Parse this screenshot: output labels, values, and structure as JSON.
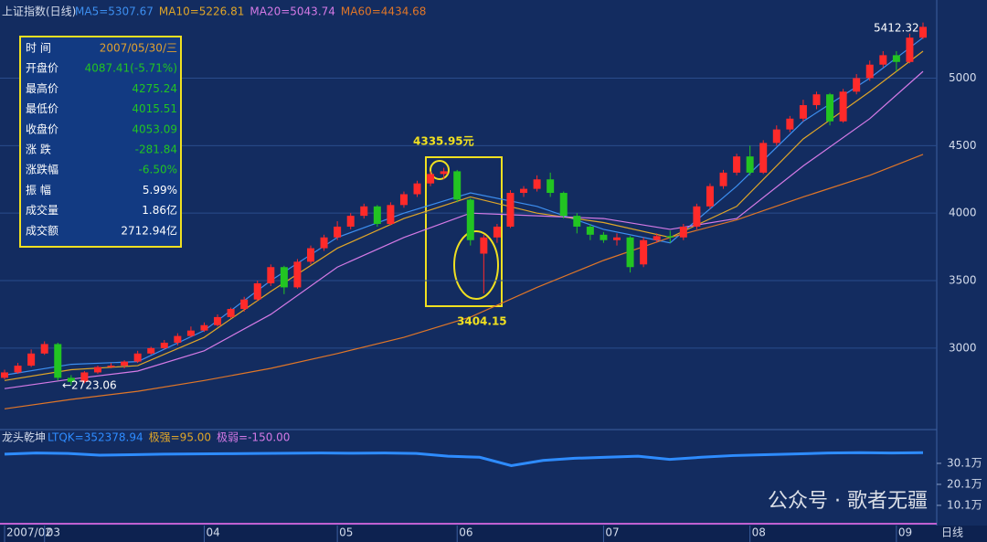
{
  "chart_data": [
    {
      "type": "candlestick",
      "title": "上证指数(日线)",
      "categories": [
        "2007/02",
        null,
        null,
        "03",
        null,
        null,
        null,
        null,
        null,
        null,
        null,
        null,
        null,
        null,
        null,
        "04",
        null,
        null,
        null,
        null,
        null,
        null,
        null,
        null,
        null,
        "05",
        null,
        null,
        null,
        null,
        null,
        null,
        null,
        null,
        "06",
        null,
        null,
        null,
        null,
        null,
        null,
        null,
        null,
        null,
        null,
        "07",
        null,
        null,
        null,
        null,
        null,
        null,
        null,
        null,
        null,
        null,
        "08",
        null,
        null,
        null,
        null,
        null,
        null,
        null,
        null,
        null,
        null,
        "09",
        null,
        null
      ],
      "open": [
        2780,
        2820,
        2870,
        2960,
        3030,
        2780,
        2750,
        2820,
        2860,
        2870,
        2900,
        2960,
        3000,
        3040,
        3090,
        3130,
        3170,
        3230,
        3290,
        3360,
        3480,
        3600,
        3450,
        3640,
        3740,
        3820,
        3900,
        3980,
        4050,
        3920,
        4060,
        4140,
        4220,
        4290,
        4310,
        4100,
        3700,
        3820,
        3900,
        4150,
        4180,
        4250,
        4150,
        3980,
        3900,
        3840,
        3800,
        3820,
        3620,
        3800,
        3830,
        3820,
        3900,
        4050,
        4200,
        4300,
        4420,
        4300,
        4520,
        4620,
        4700,
        4800,
        4880,
        4680,
        4900,
        5000,
        5100,
        5170,
        5120,
        5300
      ],
      "close": [
        2820,
        2870,
        2960,
        3030,
        2780,
        2750,
        2820,
        2860,
        2870,
        2900,
        2960,
        3000,
        3040,
        3090,
        3130,
        3170,
        3230,
        3290,
        3360,
        3480,
        3600,
        3450,
        3640,
        3740,
        3820,
        3900,
        3980,
        4050,
        3920,
        4060,
        4140,
        4220,
        4290,
        4310,
        4100,
        3800,
        3820,
        3900,
        4150,
        4180,
        4250,
        4150,
        3980,
        3900,
        3840,
        3800,
        3820,
        3600,
        3800,
        3830,
        3820,
        3900,
        4050,
        4200,
        4300,
        4420,
        4300,
        4520,
        4620,
        4700,
        4800,
        4880,
        4680,
        4900,
        5000,
        5100,
        5170,
        5120,
        5300,
        5380
      ],
      "low": [
        2770,
        2810,
        2860,
        2950,
        2760,
        2723.06,
        2740,
        2810,
        2850,
        2850,
        2890,
        2950,
        2990,
        3020,
        3080,
        3120,
        3160,
        3220,
        3270,
        3350,
        3460,
        3400,
        3440,
        3620,
        3720,
        3800,
        3880,
        3960,
        3900,
        3910,
        4040,
        4120,
        4200,
        4250,
        4080,
        3760,
        3404.15,
        3780,
        3890,
        4120,
        4160,
        4120,
        3960,
        3850,
        3800,
        3780,
        3760,
        3560,
        3600,
        3780,
        3780,
        3800,
        3880,
        4030,
        4180,
        4280,
        4280,
        4290,
        4500,
        4600,
        4680,
        4770,
        4650,
        4670,
        4880,
        4980,
        5080,
        5050,
        5110,
        5290
      ],
      "high": [
        2840,
        2890,
        2990,
        3050,
        3040,
        2800,
        2830,
        2870,
        2890,
        2910,
        2980,
        3010,
        3060,
        3110,
        3160,
        3190,
        3250,
        3300,
        3380,
        3500,
        3620,
        3610,
        3660,
        3760,
        3840,
        3940,
        4000,
        4070,
        4060,
        4080,
        4160,
        4240,
        4310,
        4335.95,
        4320,
        4110,
        3840,
        3920,
        4170,
        4200,
        4280,
        4300,
        4160,
        4000,
        3920,
        3860,
        3850,
        3830,
        3820,
        3850,
        3870,
        3920,
        4070,
        4220,
        4320,
        4440,
        4500,
        4540,
        4650,
        4720,
        4840,
        4900,
        4890,
        4920,
        5030,
        5130,
        5200,
        5200,
        5330,
        5412.32
      ],
      "ma_series": [
        {
          "name": "MA5=5307.67",
          "color": "#3d8ff0",
          "x": [
            0,
            5,
            10,
            15,
            20,
            25,
            30,
            35,
            40,
            45,
            50,
            55,
            60,
            65,
            69
          ],
          "values": [
            2800,
            2880,
            2900,
            3130,
            3500,
            3820,
            4000,
            4150,
            4050,
            3880,
            3780,
            4200,
            4680,
            5000,
            5300
          ]
        },
        {
          "name": "MA10=5226.81",
          "color": "#e0a628",
          "x": [
            0,
            5,
            10,
            15,
            20,
            25,
            30,
            35,
            40,
            45,
            50,
            55,
            60,
            65,
            69
          ],
          "values": [
            2760,
            2840,
            2870,
            3080,
            3420,
            3740,
            3960,
            4120,
            4000,
            3930,
            3820,
            4050,
            4550,
            4900,
            5200
          ]
        },
        {
          "name": "MA20=5043.74",
          "color": "#d57ae6",
          "x": [
            0,
            5,
            10,
            15,
            20,
            25,
            30,
            35,
            40,
            45,
            50,
            55,
            60,
            65,
            69
          ],
          "values": [
            2700,
            2770,
            2830,
            2980,
            3250,
            3600,
            3820,
            4000,
            3980,
            3960,
            3880,
            3960,
            4350,
            4700,
            5050
          ]
        },
        {
          "name": "MA60=4434.68",
          "color": "#e07628",
          "x": [
            0,
            5,
            10,
            15,
            20,
            25,
            30,
            35,
            40,
            45,
            50,
            55,
            60,
            65,
            69
          ],
          "values": [
            2550,
            2620,
            2680,
            2760,
            2850,
            2960,
            3080,
            3230,
            3450,
            3650,
            3820,
            3950,
            4120,
            4280,
            4434.68
          ]
        }
      ],
      "ylim": [
        2410,
        5430
      ],
      "yticks": [
        3000,
        3500,
        4000,
        4500,
        5000
      ],
      "grid": true,
      "up_color": "#ff2a2a",
      "down_color": "#22c422",
      "annotations": [
        "4335.95元",
        "3404.15",
        "5412.32",
        "←2723.06"
      ],
      "period_label": "日线"
    },
    {
      "type": "line",
      "title": "龙头乾坤",
      "series": [
        {
          "name": "LTQK=352378.94",
          "color": "#2e8cff",
          "values": [
            34.5,
            35.0,
            34.8,
            34.0,
            34.2,
            34.5,
            34.6,
            34.7,
            34.8,
            34.9,
            35.0,
            34.9,
            35.0,
            34.8,
            33.5,
            33.0,
            29.0,
            31.5,
            32.5,
            33.0,
            33.5,
            32.0,
            33.0,
            33.8,
            34.2,
            34.6,
            35.0,
            35.2,
            35.0,
            35.2
          ]
        }
      ],
      "annotations": [
        "极强=95.00",
        "极弱=-150.00"
      ],
      "ylim": [
        1.8,
        45.3
      ],
      "yticks": [
        {
          "value": 30.1,
          "label": "30.1万"
        },
        {
          "value": 20.1,
          "label": "20.1万"
        },
        {
          "value": 10.1,
          "label": "10.1万"
        }
      ]
    }
  ],
  "info_panel": {
    "rows": [
      [
        "时 间",
        "2007/05/30/三"
      ],
      [
        "开盘价",
        "4087.41(-5.71%)"
      ],
      [
        "最高价",
        "4275.24"
      ],
      [
        "最低价",
        "4015.51"
      ],
      [
        "收盘价",
        "4053.09"
      ],
      [
        "涨 跌",
        "-281.84"
      ],
      [
        "涨跌幅",
        "-6.50%"
      ],
      [
        "振 幅",
        "5.99%"
      ],
      [
        "成交量",
        "1.86亿"
      ],
      [
        "成交额",
        "2712.94亿"
      ]
    ]
  },
  "watermark": "公众号 · 歌者无疆"
}
